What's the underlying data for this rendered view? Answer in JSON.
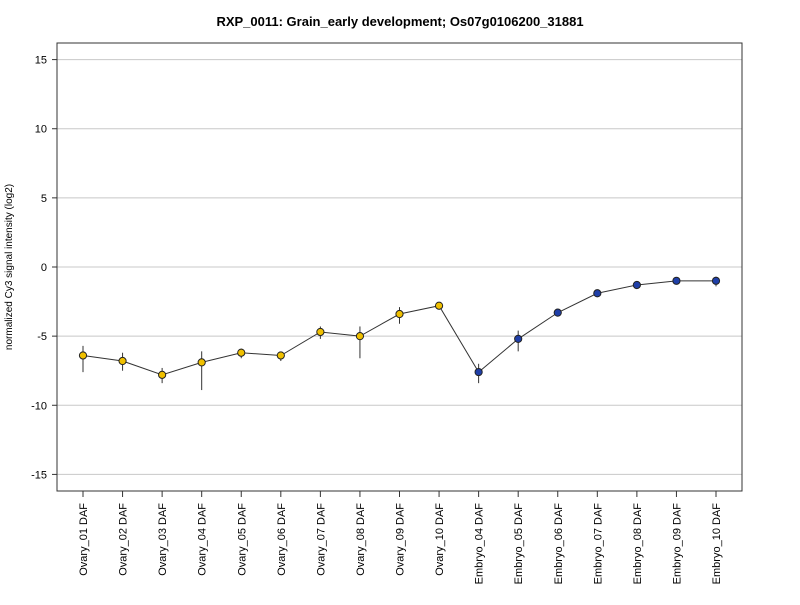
{
  "chart_data": {
    "type": "line",
    "title": "RXP_0011: Grain_early development; Os07g0106200_31881",
    "xlabel": "",
    "ylabel": "normalized Cy3 signal intensity (log2)",
    "ylim": [
      -16.2,
      16.2
    ],
    "yticks": [
      -15,
      -10,
      -5,
      0,
      5,
      10,
      15
    ],
    "ytick_labels": [
      "-15",
      "-10",
      "-5",
      "0",
      "5",
      "10",
      "15"
    ],
    "grid": "horizontal",
    "categories": [
      "Ovary_01 DAF",
      "Ovary_02 DAF",
      "Ovary_03 DAF",
      "Ovary_04 DAF",
      "Ovary_05 DAF",
      "Ovary_06 DAF",
      "Ovary_07 DAF",
      "Ovary_08 DAF",
      "Ovary_09 DAF",
      "Ovary_10 DAF",
      "Embryo_04 DAF",
      "Embryo_05 DAF",
      "Embryo_06 DAF",
      "Embryo_07 DAF",
      "Embryo_08 DAF",
      "Embryo_09 DAF",
      "Embryo_10 DAF"
    ],
    "series": [
      {
        "values": [
          -6.4,
          -6.8,
          -7.8,
          -6.9,
          -6.2,
          -6.4,
          -4.7,
          -5.0,
          -3.4,
          -2.8,
          -7.6,
          -5.2,
          -3.3,
          -1.9,
          -1.3,
          -1.0,
          -1.0
        ],
        "error_low": [
          -7.6,
          -7.5,
          -8.4,
          -8.9,
          -6.6,
          -6.8,
          -5.2,
          -6.6,
          -4.1,
          -2.9,
          -8.4,
          -6.1,
          -3.4,
          -2.0,
          -1.4,
          -1.2,
          -1.4
        ],
        "error_high": [
          -5.7,
          -6.2,
          -7.3,
          -6.1,
          -5.9,
          -6.2,
          -4.3,
          -4.3,
          -2.9,
          -2.6,
          -7.0,
          -4.6,
          -3.1,
          -1.8,
          -1.2,
          -0.9,
          -0.7
        ],
        "point_colors": [
          "#f0c000",
          "#f0c000",
          "#f0c000",
          "#f0c000",
          "#f0c000",
          "#f0c000",
          "#f0c000",
          "#f0c000",
          "#f0c000",
          "#f0c000",
          "#1f3fa8",
          "#1f3fa8",
          "#1f3fa8",
          "#1f3fa8",
          "#1f3fa8",
          "#1f3fa8",
          "#1f3fa8"
        ]
      }
    ],
    "colors": {
      "ovary": "#f0c000",
      "embryo": "#1f3fa8",
      "line": "#333333",
      "grid": "#c8c8c8"
    }
  }
}
